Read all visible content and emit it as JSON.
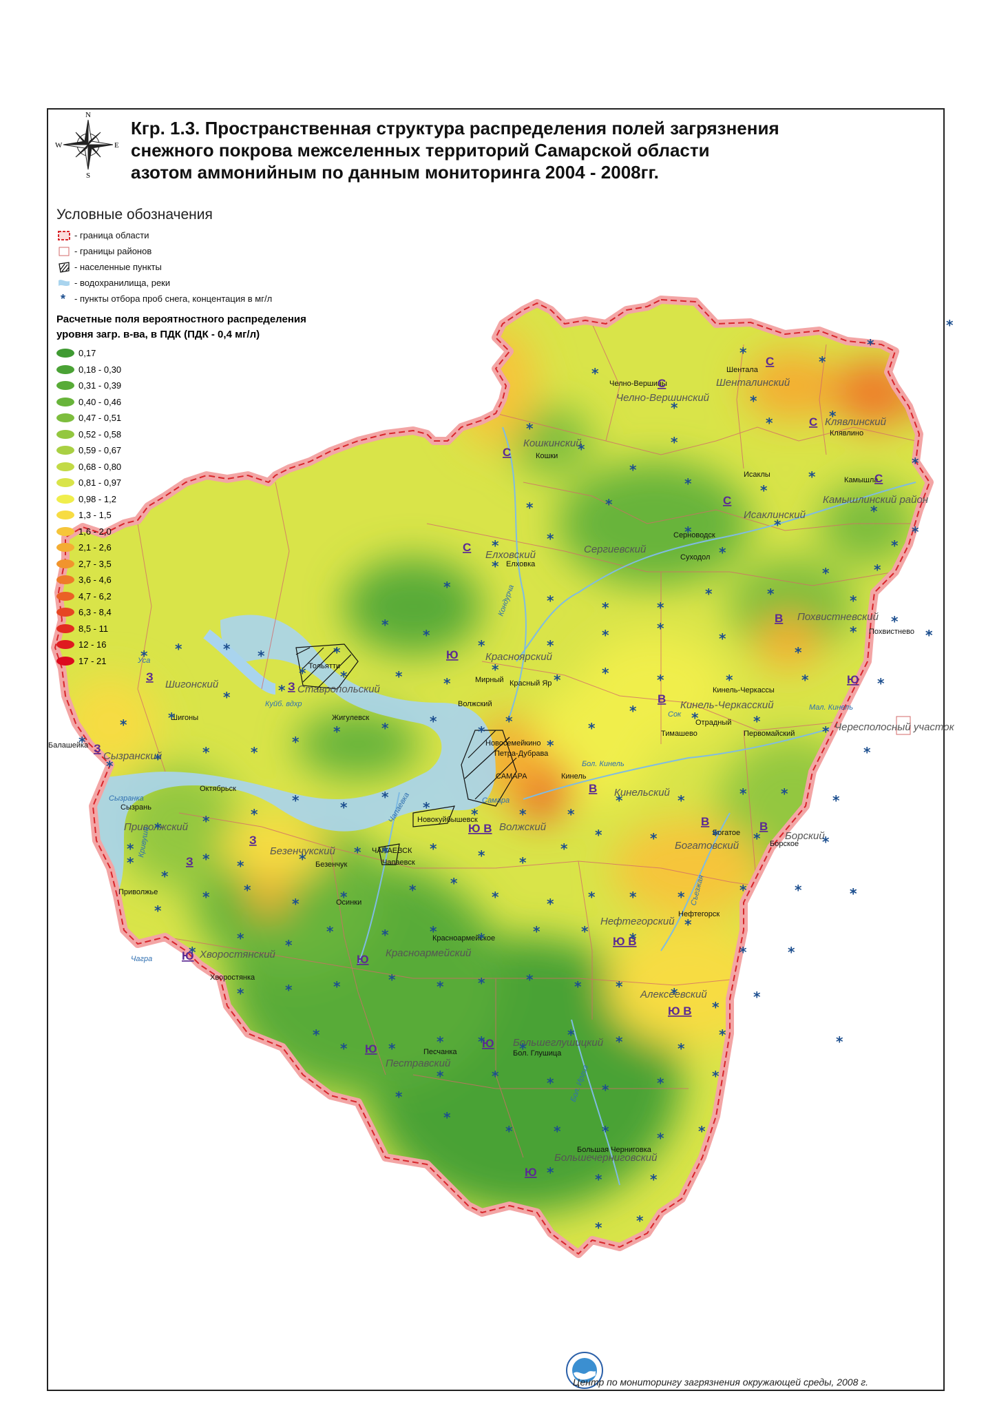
{
  "title": {
    "line1": "Кгр. 1.3. Пространственная структура распределения  полей загрязнения",
    "line2": "снежного покрова межселенных территорий Самарской области",
    "line3": "азотом аммонийным по данным мониторинга 2004 - 2008гг."
  },
  "compass": {
    "n": "N",
    "s": "S",
    "e": "E",
    "w": "W"
  },
  "legend": {
    "heading": "Условные обозначения",
    "symbols": [
      {
        "label": "- граница области",
        "icon": "region-border-icon"
      },
      {
        "label": "- границы районов",
        "icon": "district-border-icon"
      },
      {
        "label": "- населенные пункты",
        "icon": "settlement-icon"
      },
      {
        "label": "- водохранилища, реки",
        "icon": "water-icon"
      },
      {
        "label": "- пункты отбора проб снега, концентация в мг/л",
        "icon": "sample-point-icon"
      }
    ],
    "fields_heading_line1": "Расчетные поля вероятностного распределения",
    "fields_heading_line2": "уровня загр. в-ва, в ПДК (ПДК - 0,4 мг/л)",
    "levels": [
      {
        "label": "0,17",
        "color": "#3f9a32"
      },
      {
        "label": "0,18 - 0,30",
        "color": "#4aa235"
      },
      {
        "label": "0,31 - 0,39",
        "color": "#58ab37"
      },
      {
        "label": "0,40 - 0,46",
        "color": "#68b43a"
      },
      {
        "label": "0,47 - 0,51",
        "color": "#7dbd3d"
      },
      {
        "label": "0,52 - 0,58",
        "color": "#93c740"
      },
      {
        "label": "0,59 - 0,67",
        "color": "#a9d043"
      },
      {
        "label": "0,68 - 0,80",
        "color": "#c2da46"
      },
      {
        "label": "0,81 - 0,97",
        "color": "#d9e449"
      },
      {
        "label": "0,98 - 1,2",
        "color": "#f0ee4c"
      },
      {
        "label": "1,3 - 1,5",
        "color": "#f7dc43"
      },
      {
        "label": "1,6 - 2,0",
        "color": "#f6c53a"
      },
      {
        "label": "2,1 - 2,6",
        "color": "#f4ad33"
      },
      {
        "label": "2,7 - 3,5",
        "color": "#f1942d"
      },
      {
        "label": "3,6 - 4,6",
        "color": "#ee7b29"
      },
      {
        "label": "4,7 - 6,2",
        "color": "#ea6126"
      },
      {
        "label": "6,3 - 8,4",
        "color": "#e64623"
      },
      {
        "label": "8,5 - 11",
        "color": "#e22c21"
      },
      {
        "label": "12 - 16",
        "color": "#df1a1f"
      },
      {
        "label": "17 - 21",
        "color": "#dc0a1e"
      }
    ]
  },
  "map": {
    "districts": [
      "Челно-Вершинский",
      "Шенталинский",
      "Клявлинский",
      "Кошкинский",
      "Камышлинский район",
      "Исаклинский",
      "Елховский",
      "Сергиевский",
      "Похвистневский",
      "Красноярский",
      "Шигонский",
      "Ставропольский",
      "Кинель-Черкасский",
      "Сызранский",
      "Кинельский",
      "Приволжский",
      "Безенчукский",
      "Волжский",
      "Богатовский",
      "Борский",
      "Нефтегорский",
      "Хворостянский",
      "Красноармейский",
      "Алексеевский",
      "Пестравский",
      "Большеглушицкий",
      "Большечерниговский",
      "Чересполосный участок"
    ],
    "towns": [
      "Челно-Вершины",
      "Шентала",
      "Клявлино",
      "Кошки",
      "Камышла",
      "Исаклы",
      "Серноводск",
      "Суходол",
      "Елховка",
      "Похвистнево",
      "Тольятти",
      "Мирный",
      "Красный Яр",
      "Кинель-Черкассы",
      "Отрадный",
      "Тимашево",
      "Первомайский",
      "Шигоны",
      "Жигулевск",
      "Волжский",
      "Новосемейкино",
      "Петра-Дубрава",
      "САМАРА",
      "Кинель",
      "Октябрьск",
      "Сызрань",
      "Новокуйбышевск",
      "ЧАПАЕВСК",
      "Чапаевск",
      "Безенчук",
      "Богатое",
      "Борское",
      "Приволжье",
      "Осинки",
      "Нефтегорск",
      "Красноармейское",
      "Хворостянка",
      "Песчанка",
      "Бол. Глушица",
      "Большая Черниговка",
      "Балашейка"
    ],
    "zones": [
      "С",
      "С",
      "С",
      "С",
      "С",
      "С",
      "С",
      "Ю",
      "В",
      "З",
      "З",
      "Ю",
      "В",
      "З",
      "В",
      "В",
      "В",
      "З",
      "З",
      "Ю В",
      "Ю В",
      "Ю",
      "Ю",
      "Ю В",
      "Ю",
      "Ю",
      "Ю"
    ],
    "rivers": [
      "Сок",
      "Кондурча",
      "Бол. Кинель",
      "Мал. Кинель",
      "Самара",
      "Чапаевка",
      "Сызранка",
      "Чагра",
      "Съезжая",
      "Бол. Иргиз",
      "Куйб. вдхр",
      "Уса",
      "Кривуша"
    ]
  },
  "footer": "Центр по мониторингу загрязнения окружающей среды, 2008 г."
}
